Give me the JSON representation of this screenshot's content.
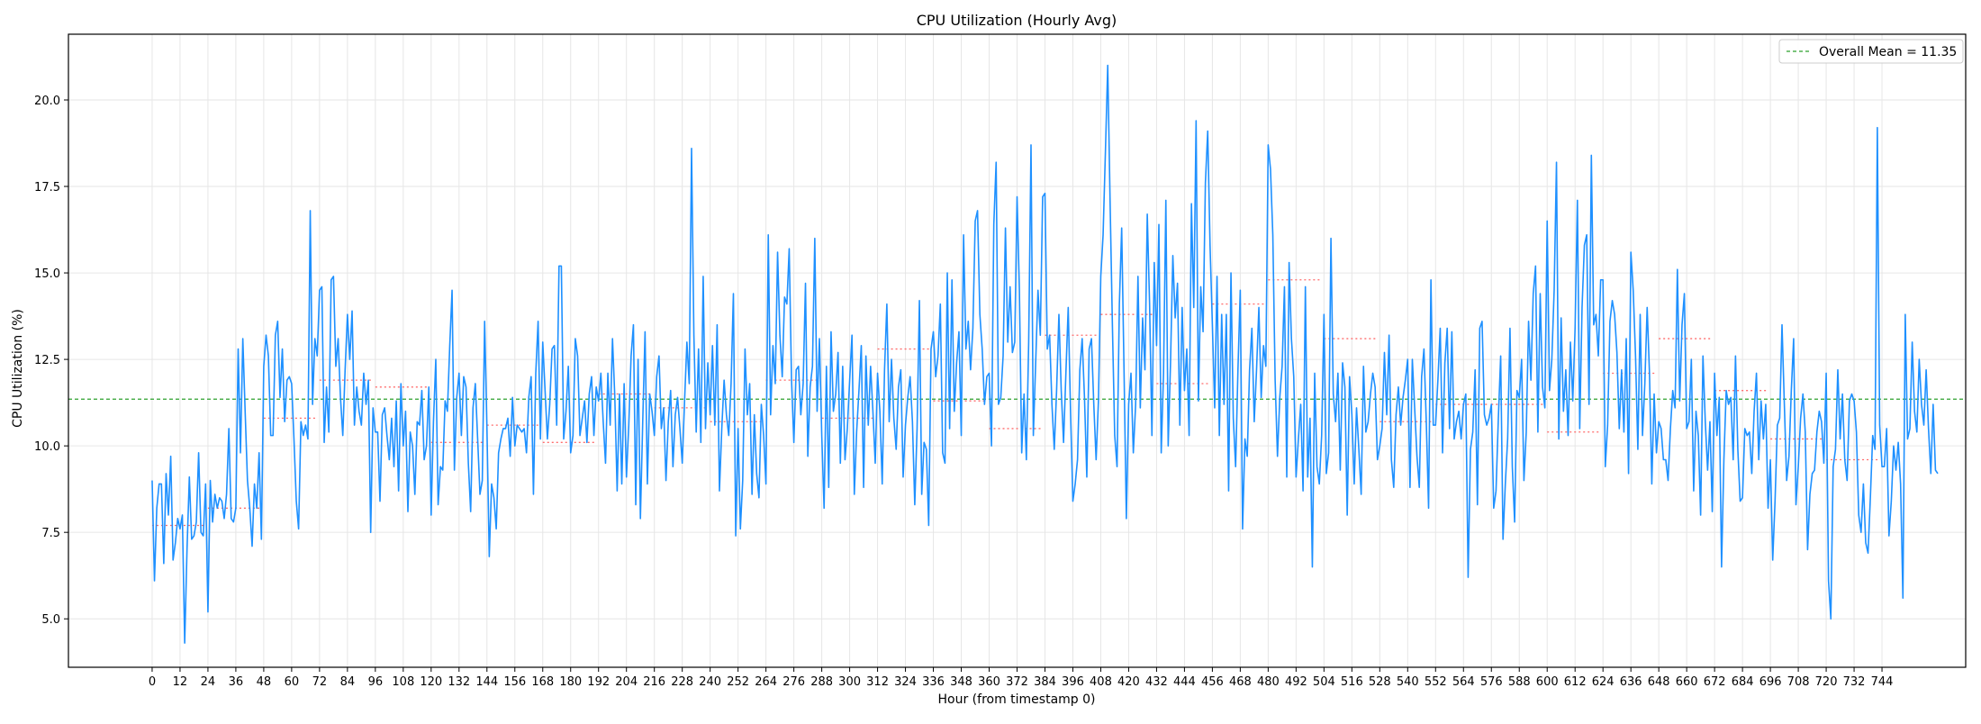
{
  "chart_data": {
    "type": "line",
    "title": "CPU Utilization (Hourly Avg)",
    "xlabel": "Hour (from timestamp 0)",
    "ylabel": "CPU Utilization (%)",
    "xlim": [
      -36,
      780
    ],
    "ylim": [
      3.6,
      21.9
    ],
    "x_ticks": [
      0,
      12,
      24,
      36,
      48,
      60,
      72,
      84,
      96,
      108,
      120,
      132,
      144,
      156,
      168,
      180,
      192,
      204,
      216,
      228,
      240,
      252,
      264,
      276,
      288,
      300,
      312,
      324,
      336,
      348,
      360,
      372,
      384,
      396,
      408,
      420,
      432,
      444,
      456,
      468,
      480,
      492,
      504,
      516,
      528,
      540,
      552,
      564,
      576,
      588,
      600,
      612,
      624,
      636,
      648,
      660,
      672,
      684,
      696,
      708,
      720,
      732,
      744
    ],
    "y_ticks": [
      5.0,
      7.5,
      10.0,
      12.5,
      15.0,
      17.5,
      20.0
    ],
    "y_tick_labels": [
      "5.0",
      "7.5",
      "10.0",
      "12.5",
      "15.0",
      "17.5",
      "20.0"
    ],
    "grid": true,
    "legend_position": "top-right",
    "colors": {
      "series": "#1e90ff",
      "mean_line": "#2ca02c",
      "daily_mean": "#ff6b6b",
      "grid": "#e6e6e6"
    },
    "series": [
      {
        "name": "CPU Utilization",
        "x_start": 0,
        "x_step": 1,
        "values": [
          9.0,
          6.1,
          8.2,
          8.9,
          8.9,
          6.6,
          9.2,
          8.0,
          9.7,
          6.7,
          7.2,
          7.9,
          7.6,
          8.0,
          4.3,
          7.0,
          9.1,
          7.3,
          7.4,
          7.8,
          9.8,
          7.5,
          7.4,
          8.9,
          5.2,
          9.0,
          7.8,
          8.6,
          8.2,
          8.5,
          8.4,
          7.9,
          8.6,
          10.5,
          7.9,
          7.8,
          8.2,
          12.8,
          9.8,
          13.1,
          11.0,
          9.0,
          8.2,
          7.1,
          8.9,
          8.2,
          9.8,
          7.3,
          12.3,
          13.2,
          12.6,
          10.3,
          10.3,
          13.2,
          13.6,
          11.4,
          12.8,
          10.7,
          11.9,
          12.0,
          11.8,
          10.2,
          8.4,
          7.6,
          10.7,
          10.3,
          10.6,
          10.2,
          16.8,
          11.2,
          13.1,
          12.6,
          14.5,
          14.6,
          10.1,
          11.7,
          10.4,
          14.8,
          14.9,
          12.3,
          13.1,
          11.4,
          10.3,
          12.2,
          13.8,
          12.5,
          13.9,
          10.6,
          11.7,
          11.0,
          10.6,
          12.1,
          11.2,
          11.9,
          7.5,
          11.1,
          10.4,
          10.4,
          8.4,
          10.9,
          11.1,
          10.3,
          9.6,
          10.8,
          9.4,
          11.3,
          8.7,
          11.8,
          10.0,
          11.0,
          8.1,
          10.4,
          10.0,
          8.6,
          10.7,
          10.6,
          11.6,
          9.6,
          10.0,
          11.7,
          8.0,
          10.7,
          12.5,
          8.3,
          9.4,
          9.3,
          11.3,
          11.0,
          12.9,
          14.5,
          9.3,
          11.4,
          12.1,
          10.3,
          12.0,
          11.7,
          9.5,
          8.1,
          11.1,
          11.8,
          10.2,
          8.6,
          9.0,
          13.6,
          10.5,
          6.8,
          8.9,
          8.5,
          7.6,
          9.8,
          10.2,
          10.5,
          10.5,
          10.8,
          9.7,
          11.4,
          10.0,
          10.6,
          10.5,
          10.4,
          10.5,
          9.8,
          11.4,
          12.0,
          8.6,
          12.1,
          13.6,
          10.2,
          13.0,
          11.6,
          10.2,
          11.2,
          12.8,
          12.9,
          10.6,
          15.2,
          15.2,
          10.2,
          11.0,
          12.3,
          9.8,
          10.3,
          13.1,
          12.6,
          10.3,
          10.8,
          11.3,
          10.1,
          11.5,
          12.0,
          10.3,
          11.7,
          11.3,
          12.1,
          10.7,
          9.5,
          12.1,
          10.6,
          13.1,
          11.4,
          8.7,
          11.5,
          8.9,
          11.8,
          9.1,
          10.6,
          12.6,
          13.5,
          8.3,
          12.5,
          7.9,
          10.7,
          13.3,
          8.9,
          11.5,
          11.0,
          10.3,
          12.0,
          12.6,
          10.5,
          11.1,
          9.0,
          10.7,
          11.6,
          9.4,
          10.9,
          11.4,
          10.5,
          9.5,
          11.3,
          13.0,
          11.8,
          18.6,
          13.2,
          10.4,
          12.8,
          10.1,
          14.9,
          10.5,
          12.4,
          10.9,
          12.9,
          10.6,
          13.5,
          8.7,
          10.5,
          11.9,
          10.9,
          10.3,
          11.8,
          14.4,
          7.4,
          10.5,
          7.6,
          9.0,
          12.8,
          10.9,
          11.8,
          8.6,
          10.9,
          9.2,
          8.5,
          11.2,
          10.3,
          8.9,
          16.1,
          10.9,
          12.9,
          11.8,
          15.6,
          13.2,
          12.0,
          14.3,
          14.1,
          15.7,
          11.9,
          10.1,
          12.2,
          12.3,
          10.9,
          11.8,
          14.7,
          9.7,
          11.7,
          12.3,
          16.0,
          11.0,
          13.1,
          10.3,
          8.2,
          12.3,
          8.8,
          13.3,
          11.0,
          11.5,
          12.7,
          9.5,
          12.3,
          9.6,
          10.5,
          11.9,
          13.2,
          8.6,
          10.4,
          11.6,
          12.9,
          8.8,
          12.6,
          10.6,
          12.3,
          11.0,
          9.5,
          12.1,
          11.0,
          8.9,
          12.2,
          14.1,
          10.7,
          12.5,
          10.8,
          9.9,
          11.7,
          12.2,
          9.1,
          10.6,
          11.4,
          12.0,
          10.7,
          8.3,
          10.5,
          14.2,
          8.6,
          10.1,
          9.9,
          7.7,
          12.8,
          13.3,
          12.0,
          12.6,
          14.1,
          9.8,
          9.5,
          15.0,
          10.5,
          14.8,
          11.0,
          12.4,
          13.3,
          10.3,
          16.1,
          12.8,
          13.6,
          12.2,
          13.4,
          16.5,
          16.8,
          13.8,
          12.8,
          11.2,
          12.0,
          12.1,
          10.0,
          16.4,
          18.2,
          11.2,
          11.4,
          12.6,
          16.3,
          13.0,
          14.6,
          12.7,
          13.0,
          17.2,
          14.5,
          9.8,
          11.5,
          9.6,
          13.0,
          18.7,
          10.3,
          12.4,
          14.5,
          13.2,
          17.2,
          17.3,
          12.8,
          13.2,
          11.2,
          9.9,
          11.6,
          13.8,
          11.6,
          10.1,
          12.1,
          14.0,
          11.0,
          8.4,
          8.9,
          9.6,
          12.2,
          13.1,
          11.4,
          9.1,
          12.8,
          13.1,
          11.2,
          9.6,
          11.3,
          14.9,
          16.1,
          18.5,
          21.0,
          17.1,
          13.5,
          10.3,
          9.4,
          14.1,
          16.3,
          12.2,
          7.9,
          11.2,
          12.1,
          9.8,
          11.2,
          14.9,
          11.1,
          13.7,
          12.2,
          16.7,
          14.1,
          10.3,
          15.3,
          12.9,
          16.4,
          9.8,
          12.1,
          17.1,
          10.0,
          12.4,
          15.5,
          13.7,
          14.7,
          10.6,
          14.0,
          11.6,
          12.8,
          10.3,
          17.0,
          14.0,
          19.4,
          11.3,
          14.6,
          13.3,
          17.6,
          19.1,
          15.8,
          13.5,
          11.1,
          14.9,
          10.3,
          13.8,
          11.2,
          13.8,
          8.7,
          15.0,
          10.8,
          9.4,
          12.2,
          14.5,
          7.6,
          10.2,
          9.7,
          12.2,
          13.4,
          10.7,
          12.2,
          14.0,
          11.4,
          12.9,
          12.3,
          18.7,
          18.0,
          16.1,
          11.9,
          9.7,
          11.4,
          12.3,
          14.6,
          9.1,
          15.3,
          13.1,
          12.0,
          9.1,
          10.2,
          11.2,
          8.7,
          14.6,
          9.1,
          10.8,
          6.5,
          12.1,
          9.4,
          8.9,
          10.3,
          13.8,
          9.2,
          9.8,
          16.0,
          11.5,
          10.7,
          12.1,
          9.3,
          12.4,
          11.7,
          8.0,
          12.0,
          10.9,
          8.9,
          11.1,
          9.9,
          8.6,
          12.3,
          10.4,
          10.7,
          11.5,
          12.1,
          11.7,
          9.6,
          10.0,
          10.5,
          12.7,
          10.9,
          13.2,
          9.6,
          8.8,
          10.9,
          11.7,
          10.6,
          11.4,
          11.9,
          12.5,
          8.8,
          12.5,
          11.1,
          9.7,
          8.8,
          12.0,
          12.8,
          10.7,
          8.2,
          14.8,
          10.6,
          10.6,
          11.9,
          13.4,
          9.8,
          12.4,
          13.4,
          10.5,
          13.3,
          10.2,
          10.7,
          11.0,
          10.2,
          11.2,
          11.5,
          6.2,
          9.9,
          10.4,
          12.2,
          8.3,
          13.4,
          13.6,
          10.9,
          10.6,
          10.8,
          11.2,
          8.2,
          8.7,
          10.8,
          12.6,
          7.3,
          8.9,
          10.2,
          13.4,
          9.4,
          7.8,
          11.6,
          11.4,
          12.5,
          9.0,
          10.4,
          13.6,
          11.9,
          14.4,
          15.2,
          10.4,
          14.4,
          11.7,
          11.1,
          16.5,
          11.6,
          12.5,
          14.5,
          18.2,
          10.2,
          13.7,
          11.0,
          12.2,
          10.3,
          13.0,
          11.3,
          13.4,
          17.1,
          10.5,
          14.0,
          15.8,
          16.1,
          11.2,
          18.4,
          13.5,
          13.8,
          12.6,
          14.8,
          14.8,
          9.4,
          10.6,
          13.6,
          14.2,
          13.8,
          12.7,
          10.5,
          12.2,
          10.4,
          13.1,
          9.2,
          15.6,
          14.5,
          12.6,
          9.9,
          13.8,
          10.3,
          11.8,
          14.0,
          12.1,
          8.9,
          11.5,
          9.8,
          10.7,
          10.5,
          9.6,
          9.6,
          9.0,
          10.5,
          11.6,
          11.1,
          15.1,
          11.3,
          13.5,
          14.4,
          10.5,
          10.7,
          12.5,
          8.7,
          11.0,
          10.3,
          8.0,
          12.6,
          10.7,
          9.3,
          10.7,
          8.1,
          12.1,
          10.3,
          11.4,
          6.5,
          9.6,
          11.6,
          11.2,
          11.4,
          9.6,
          12.6,
          9.9,
          8.4,
          8.5,
          10.5,
          10.3,
          10.4,
          9.2,
          11.0,
          12.1,
          9.6,
          11.3,
          10.2,
          11.2,
          8.2,
          9.6,
          6.7,
          8.4,
          10.6,
          10.8,
          13.5,
          11.2,
          9.0,
          9.7,
          11.6,
          13.1,
          8.3,
          9.4,
          10.8,
          11.5,
          10.4,
          7.0,
          8.6,
          9.2,
          9.3,
          10.4,
          11.0,
          10.7,
          9.5,
          12.1,
          6.1,
          5.0,
          9.4,
          9.9,
          12.2,
          10.2,
          11.5,
          9.6,
          9.0,
          11.3,
          11.5,
          11.3,
          10.4,
          8.0,
          7.5,
          8.9,
          7.2,
          6.9,
          8.5,
          10.3,
          9.9,
          19.2,
          10.6,
          9.4,
          9.4,
          10.5,
          7.4,
          8.4,
          10.0,
          9.3,
          10.1,
          8.9,
          5.6,
          13.8,
          10.2,
          10.5,
          13.0,
          11.0,
          10.4,
          12.5,
          11.2,
          10.6,
          12.2,
          10.5,
          9.2,
          11.2,
          9.3,
          9.2
        ]
      }
    ],
    "mean_line": {
      "value": 11.35,
      "label": "Overall Mean = 11.35"
    },
    "daily_means": [
      7.7,
      8.2,
      10.8,
      11.9,
      11.7,
      10.1,
      10.6,
      10.1,
      11.5,
      11.1,
      10.7,
      11.9,
      10.8,
      12.8,
      11.3,
      10.5,
      13.2,
      13.8,
      11.8,
      14.1,
      14.8,
      13.1,
      10.7,
      11.2,
      11.2,
      10.4,
      12.1,
      13.1,
      11.6,
      10.2,
      9.6
    ]
  }
}
